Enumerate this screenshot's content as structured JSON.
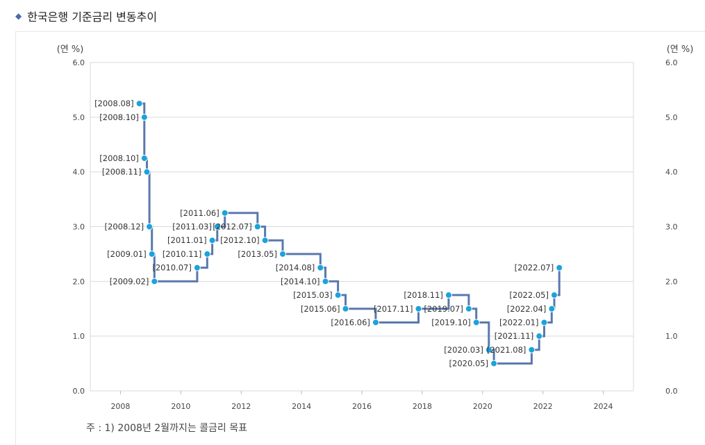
{
  "header": {
    "title": "한국은행 기준금리 변동추이",
    "icon": "diamond-icon"
  },
  "chart_data": {
    "type": "line",
    "step": true,
    "title": "한국은행 기준금리 변동추이",
    "ylabel_left": "(연 %)",
    "ylabel_right": "(연 %)",
    "ylim": [
      0,
      6
    ],
    "xlim": [
      2007,
      2025
    ],
    "yticks": [
      "0.0",
      "1.0",
      "2.0",
      "3.0",
      "4.0",
      "5.0",
      "6.0"
    ],
    "xticks": [
      "2008",
      "2010",
      "2012",
      "2014",
      "2016",
      "2018",
      "2020",
      "2022",
      "2024"
    ],
    "grid": true,
    "line_color": "#5a78ad",
    "marker_color": "#1aa3dc",
    "series": [
      {
        "points": [
          {
            "label": "[2008.08]",
            "date": "2008.08",
            "value": 5.25
          },
          {
            "label": "[2008.10]",
            "date": "2008.10",
            "value": 5.0
          },
          {
            "label": "[2008.10]",
            "date": "2008.10",
            "value": 4.25
          },
          {
            "label": "[2008.11]",
            "date": "2008.11",
            "value": 4.0
          },
          {
            "label": "[2008.12]",
            "date": "2008.12",
            "value": 3.0
          },
          {
            "label": "[2009.01]",
            "date": "2009.01",
            "value": 2.5
          },
          {
            "label": "[2009.02]",
            "date": "2009.02",
            "value": 2.0
          },
          {
            "label": "[2010.07]",
            "date": "2010.07",
            "value": 2.25
          },
          {
            "label": "[2010.11]",
            "date": "2010.11",
            "value": 2.5
          },
          {
            "label": "[2011.01]",
            "date": "2011.01",
            "value": 2.75
          },
          {
            "label": "[2011.03]",
            "date": "2011.03",
            "value": 3.0
          },
          {
            "label": "[2011.06]",
            "date": "2011.06",
            "value": 3.25
          },
          {
            "label": "[2012.07]",
            "date": "2012.07",
            "value": 3.0
          },
          {
            "label": "[2012.10]",
            "date": "2012.10",
            "value": 2.75
          },
          {
            "label": "[2013.05]",
            "date": "2013.05",
            "value": 2.5
          },
          {
            "label": "[2014.08]",
            "date": "2014.08",
            "value": 2.25
          },
          {
            "label": "[2014.10]",
            "date": "2014.10",
            "value": 2.0
          },
          {
            "label": "[2015.03]",
            "date": "2015.03",
            "value": 1.75
          },
          {
            "label": "[2015.06]",
            "date": "2015.06",
            "value": 1.5
          },
          {
            "label": "[2016.06]",
            "date": "2016.06",
            "value": 1.25
          },
          {
            "label": "[2017.11]",
            "date": "2017.11",
            "value": 1.5
          },
          {
            "label": "[2018.11]",
            "date": "2018.11",
            "value": 1.75
          },
          {
            "label": "[2019.07]",
            "date": "2019.07",
            "value": 1.5
          },
          {
            "label": "[2019.10]",
            "date": "2019.10",
            "value": 1.25
          },
          {
            "label": "[2020.03]",
            "date": "2020.03",
            "value": 0.75
          },
          {
            "label": "[2020.05]",
            "date": "2020.05",
            "value": 0.5
          },
          {
            "label": "[2021.08]",
            "date": "2021.08",
            "value": 0.75
          },
          {
            "label": "[2021.11]",
            "date": "2021.11",
            "value": 1.0
          },
          {
            "label": "[2022.01]",
            "date": "2022.01",
            "value": 1.25
          },
          {
            "label": "[2022.04]",
            "date": "2022.04",
            "value": 1.5
          },
          {
            "label": "[2022.05]",
            "date": "2022.05",
            "value": 1.75
          },
          {
            "label": "[2022.07]",
            "date": "2022.07",
            "value": 2.25
          }
        ]
      }
    ]
  },
  "footnote": "주 : 1) 2008년 2월까지는 콜금리 목표"
}
